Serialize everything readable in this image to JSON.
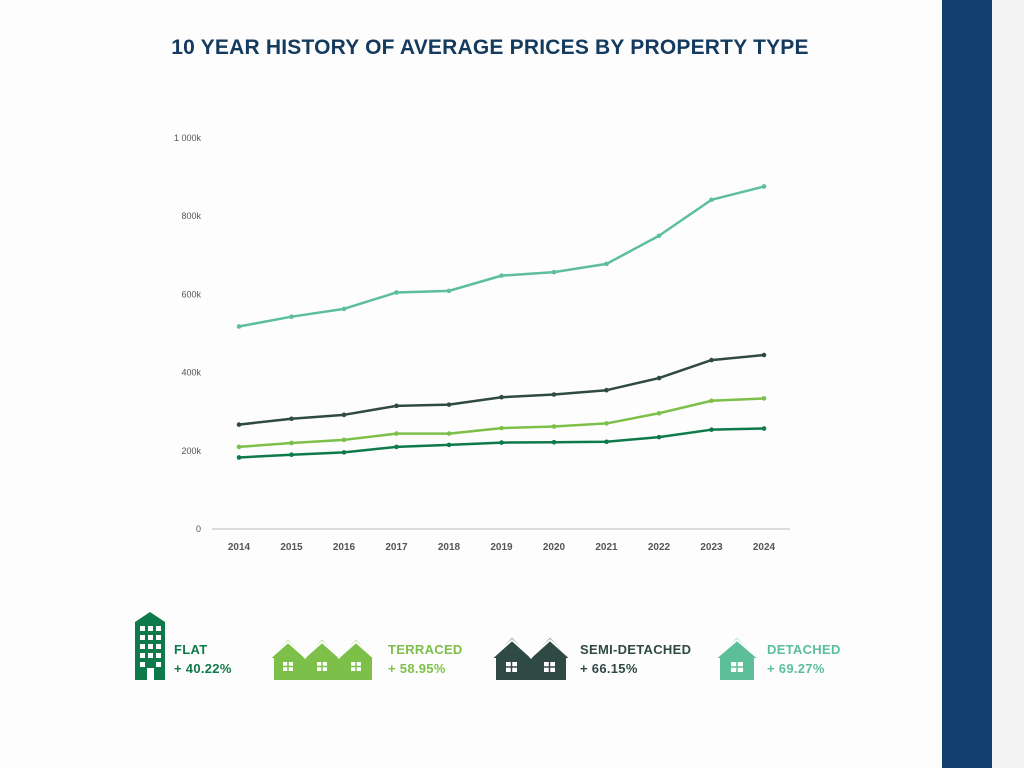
{
  "title": "10 YEAR HISTORY OF AVERAGE PRICES BY PROPERTY TYPE",
  "colors": {
    "title": "#143a5e",
    "flat": "#0e7a4a",
    "terraced": "#7cc04a",
    "semi_detached": "#2f4a45",
    "detached": "#5dbf9a",
    "axis_text": "#555555",
    "stripe": "#123f6e"
  },
  "chart_data": {
    "type": "line",
    "title": "10 YEAR HISTORY OF AVERAGE PRICES BY PROPERTY TYPE",
    "xlabel": "",
    "ylabel": "",
    "x": [
      "2014",
      "2015",
      "2016",
      "2017",
      "2018",
      "2019",
      "2020",
      "2021",
      "2022",
      "2023",
      "2024"
    ],
    "ylim": [
      0,
      1000
    ],
    "y_ticks": [
      0,
      200,
      400,
      600,
      800,
      1000
    ],
    "y_tick_labels": [
      "0",
      "200k",
      "400k",
      "600k",
      "800k",
      "1 000k"
    ],
    "grid": false,
    "legend": "bottom",
    "series": [
      {
        "key": "detached",
        "name": "DETACHED",
        "values": [
          518,
          543,
          563,
          605,
          609,
          648,
          657,
          678,
          750,
          842,
          876
        ]
      },
      {
        "key": "semi_detached",
        "name": "SEMI-DETACHED",
        "values": [
          267,
          282,
          292,
          315,
          318,
          337,
          344,
          355,
          386,
          432,
          445
        ]
      },
      {
        "key": "terraced",
        "name": "TERRACED",
        "values": [
          210,
          220,
          228,
          244,
          244,
          258,
          262,
          270,
          296,
          328,
          334
        ]
      },
      {
        "key": "flat",
        "name": "FLAT",
        "values": [
          183,
          190,
          196,
          210,
          215,
          221,
          222,
          223,
          235,
          254,
          257
        ]
      }
    ]
  },
  "legend": [
    {
      "key": "flat",
      "label": "FLAT",
      "change": "+ 40.22%",
      "icon": "apartment-building-icon"
    },
    {
      "key": "terraced",
      "label": "TERRACED",
      "change": "+ 58.95%",
      "icon": "terraced-houses-icon"
    },
    {
      "key": "semi_detached",
      "label": "SEMI-DETACHED",
      "change": "+ 66.15%",
      "icon": "semi-detached-houses-icon"
    },
    {
      "key": "detached",
      "label": "DETACHED",
      "change": "+ 69.27%",
      "icon": "detached-house-icon"
    }
  ]
}
